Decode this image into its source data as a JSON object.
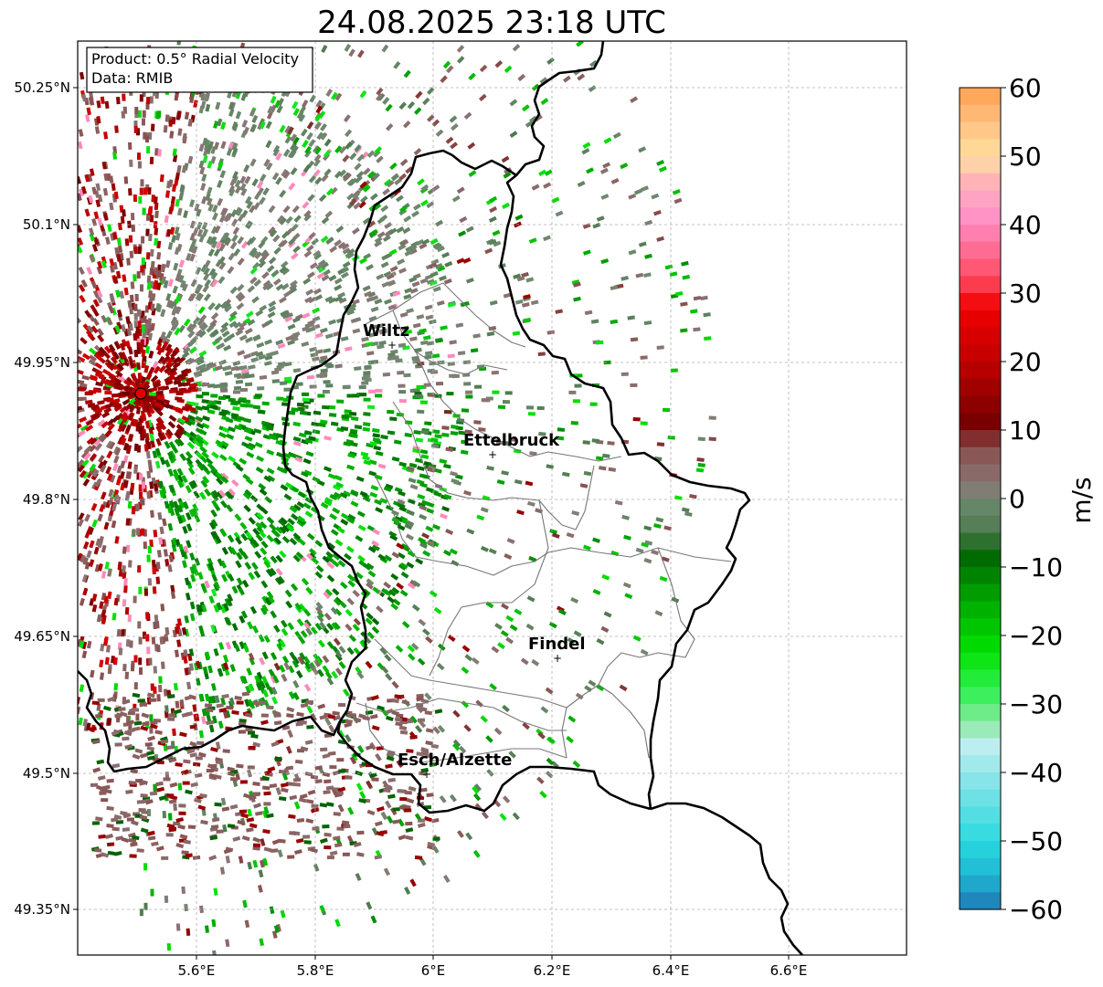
{
  "title": "24.08.2025 23:18 UTC",
  "info_box": {
    "product": "Product: 0.5° Radial Velocity",
    "source": "Data: RMIB"
  },
  "axes": {
    "x_ticks": [
      "5.6°E",
      "5.8°E",
      "6°E",
      "6.2°E",
      "6.4°E",
      "6.6°E"
    ],
    "y_ticks": [
      "50.25°N",
      "50.1°N",
      "49.95°N",
      "49.8°N",
      "49.65°N",
      "49.5°N",
      "49.35°N"
    ]
  },
  "cities": [
    {
      "name": "Wiltz"
    },
    {
      "name": "Ettelbruck"
    },
    {
      "name": "Findel"
    },
    {
      "name": "Esch/Alzette"
    }
  ],
  "colorbar": {
    "label": "m/s",
    "ticks": [
      "60",
      "50",
      "40",
      "30",
      "20",
      "10",
      "0",
      "−10",
      "−20",
      "−30",
      "−40",
      "−50",
      "−60"
    ],
    "min": -60,
    "max": 60,
    "stops": [
      {
        "v": -60,
        "c": "#1f77b4"
      },
      {
        "v": -55,
        "c": "#1fb8d4"
      },
      {
        "v": -50,
        "c": "#2ad9de"
      },
      {
        "v": -42,
        "c": "#7fe3e8"
      },
      {
        "v": -36,
        "c": "#bfeef0"
      },
      {
        "v": -33,
        "c": "#8feaa8"
      },
      {
        "v": -28,
        "c": "#30f050"
      },
      {
        "v": -22,
        "c": "#00e000"
      },
      {
        "v": -15,
        "c": "#00a800"
      },
      {
        "v": -8,
        "c": "#006400"
      },
      {
        "v": -5,
        "c": "#4e7a4e"
      },
      {
        "v": 0,
        "c": "#6e8a70"
      },
      {
        "v": 2,
        "c": "#8a7676"
      },
      {
        "v": 8,
        "c": "#8a4a4a"
      },
      {
        "v": 10,
        "c": "#6e0000"
      },
      {
        "v": 20,
        "c": "#c00000"
      },
      {
        "v": 28,
        "c": "#f00000"
      },
      {
        "v": 32,
        "c": "#ff4a60"
      },
      {
        "v": 38,
        "c": "#ff7aa8"
      },
      {
        "v": 42,
        "c": "#ff99cc"
      },
      {
        "v": 46,
        "c": "#ffb0b8"
      },
      {
        "v": 50,
        "c": "#ffe0a0"
      },
      {
        "v": 55,
        "c": "#ffc080"
      },
      {
        "v": 60,
        "c": "#ffa050"
      }
    ]
  },
  "radar_site_marker_color": "#e00000"
}
